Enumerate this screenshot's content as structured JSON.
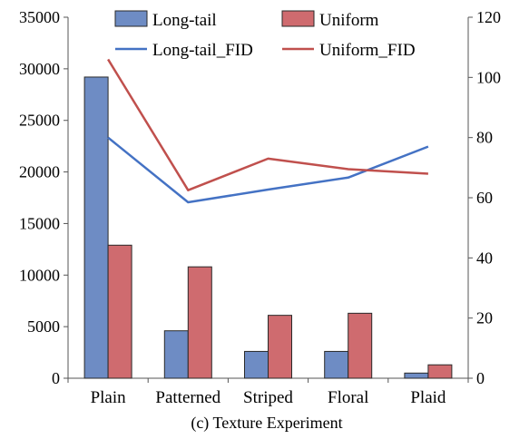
{
  "chart_data": {
    "type": "bar",
    "title": "",
    "caption": "(c) Texture Experiment",
    "categories": [
      "Plain",
      "Patterned",
      "Striped",
      "Floral",
      "Plaid"
    ],
    "series": [
      {
        "name": "Long-tail",
        "kind": "bar",
        "axis": "left",
        "color": "#6e8cc4",
        "values": [
          29200,
          4600,
          2600,
          2600,
          500
        ]
      },
      {
        "name": "Uniform",
        "kind": "bar",
        "axis": "left",
        "color": "#cf6b6f",
        "values": [
          12900,
          10800,
          6100,
          6300,
          1300
        ]
      },
      {
        "name": "Long-tail_FID",
        "kind": "line",
        "axis": "right",
        "color": "#4472c4",
        "values": [
          80,
          58.5,
          62.7,
          66.7,
          77
        ]
      },
      {
        "name": "Uniform_FID",
        "kind": "line",
        "axis": "right",
        "color": "#c0504d",
        "values": [
          106,
          62.5,
          73,
          69.5,
          68
        ]
      }
    ],
    "y_left": {
      "min": 0,
      "max": 35000,
      "ticks": [
        "0",
        "5000",
        "10000",
        "15000",
        "20000",
        "25000",
        "30000",
        "35000"
      ]
    },
    "y_right": {
      "min": 0,
      "max": 120,
      "ticks": [
        "0",
        "20",
        "40",
        "60",
        "80",
        "100",
        "120"
      ]
    },
    "grid": false,
    "legend_placement": "top-center"
  }
}
